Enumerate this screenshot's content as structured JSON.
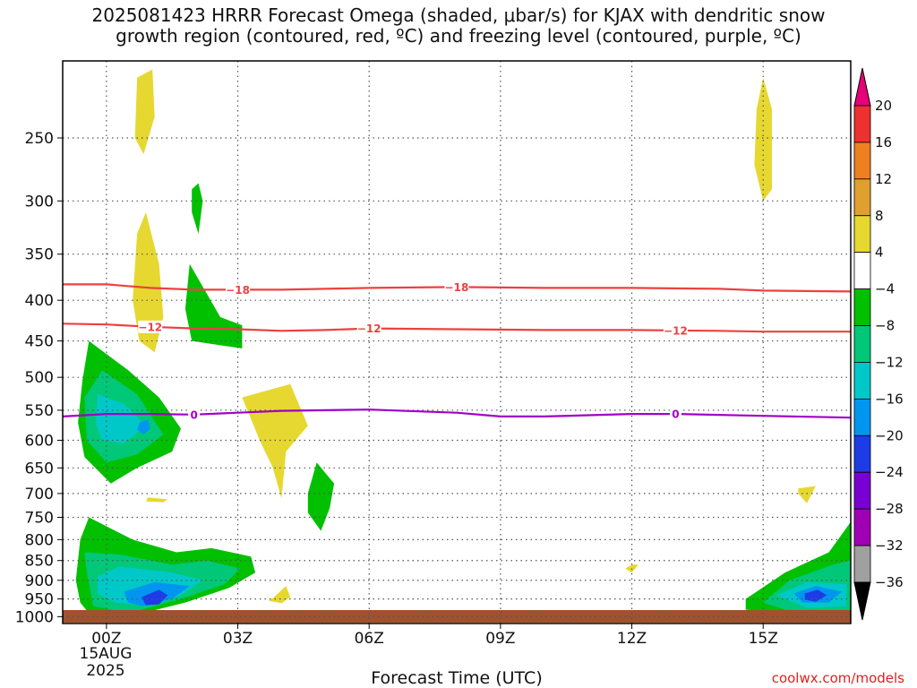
{
  "title_line1": "2025081423 HRRR Forecast Omega (shaded, μbar/s) for KJAX with dendritic snow",
  "title_line2": "growth region (contoured, red, ºC) and freezing level (contoured, purple, ºC)",
  "credit": "coolwx.com/models",
  "chart_data": {
    "type": "contour",
    "xlabel": "Forecast Time (UTC)",
    "x_ticks": [
      {
        "hour": 0,
        "label": "00Z"
      },
      {
        "hour": 3,
        "label": "03Z"
      },
      {
        "hour": 6,
        "label": "06Z"
      },
      {
        "hour": 9,
        "label": "09Z"
      },
      {
        "hour": 12,
        "label": "12Z"
      },
      {
        "hour": 15,
        "label": "15Z"
      }
    ],
    "x_date_label": [
      "15AUG",
      "2025"
    ],
    "xlim": [
      -1,
      17
    ],
    "y_ticks": [
      250,
      300,
      350,
      400,
      450,
      500,
      550,
      600,
      650,
      700,
      750,
      800,
      850,
      900,
      950,
      1000
    ],
    "ylim": [
      1020,
      200
    ],
    "y_scale": "log",
    "colorbar": {
      "labels": [
        "20",
        "16",
        "12",
        "8",
        "4",
        "−4",
        "−8",
        "−12",
        "−16",
        "−20",
        "−24",
        "−28",
        "−32",
        "−36"
      ],
      "colors": [
        "#e8007a",
        "#ee3030",
        "#ee8020",
        "#e0a030",
        "#e6d830",
        "#ffffff",
        "#00c000",
        "#00c878",
        "#00c8c8",
        "#0096f0",
        "#1e3ce6",
        "#7800d2",
        "#a000b4",
        "#a0a0a0",
        "#000000"
      ]
    },
    "dgz_contours": [
      {
        "level": -18,
        "color": "#ee4040",
        "points": [
          [
            -1,
            382
          ],
          [
            0,
            382
          ],
          [
            1,
            386
          ],
          [
            2,
            388
          ],
          [
            3,
            388
          ],
          [
            4,
            388
          ],
          [
            5,
            387
          ],
          [
            6,
            386
          ],
          [
            8,
            385
          ],
          [
            10,
            386
          ],
          [
            12,
            386
          ],
          [
            14,
            387
          ],
          [
            15,
            389
          ],
          [
            17,
            390
          ]
        ],
        "label_hours": [
          3,
          8
        ]
      },
      {
        "level": -12,
        "color": "#ee4040",
        "points": [
          [
            -1,
            428
          ],
          [
            0,
            429
          ],
          [
            1,
            432
          ],
          [
            2,
            434
          ],
          [
            3,
            435
          ],
          [
            4,
            437
          ],
          [
            5,
            436
          ],
          [
            6,
            434
          ],
          [
            8,
            435
          ],
          [
            10,
            436
          ],
          [
            12,
            436
          ],
          [
            14,
            437
          ],
          [
            15,
            438
          ],
          [
            17,
            438
          ]
        ],
        "label_hours": [
          1,
          6,
          13
        ]
      }
    ],
    "freezing_contour": {
      "level": 0,
      "color": "#a000c8",
      "points": [
        [
          -1,
          560
        ],
        [
          0,
          556
        ],
        [
          1,
          556
        ],
        [
          2,
          557
        ],
        [
          3,
          554
        ],
        [
          4,
          551
        ],
        [
          6,
          549
        ],
        [
          8,
          554
        ],
        [
          9,
          560
        ],
        [
          10,
          560
        ],
        [
          11,
          558
        ],
        [
          12,
          556
        ],
        [
          13,
          556
        ],
        [
          15,
          559
        ],
        [
          17,
          562
        ]
      ],
      "label_hours": [
        2,
        13
      ]
    },
    "omega_regions": [
      {
        "level": 4,
        "points": [
          [
            0.7,
            210
          ],
          [
            1.05,
            205
          ],
          [
            1.1,
            235
          ],
          [
            0.85,
            262
          ],
          [
            0.65,
            250
          ]
        ]
      },
      {
        "level": 4,
        "points": [
          [
            0.7,
            330
          ],
          [
            0.9,
            310
          ],
          [
            1.2,
            360
          ],
          [
            1.3,
            420
          ],
          [
            1.1,
            465
          ],
          [
            0.75,
            450
          ],
          [
            0.6,
            400
          ]
        ]
      },
      {
        "level": 4,
        "points": [
          [
            3.1,
            530
          ],
          [
            4.2,
            510
          ],
          [
            4.6,
            575
          ],
          [
            4.1,
            620
          ],
          [
            4.0,
            710
          ],
          [
            3.8,
            650
          ],
          [
            3.5,
            600
          ]
        ]
      },
      {
        "level": 4,
        "points": [
          [
            3.8,
            948
          ],
          [
            4.1,
            915
          ],
          [
            4.2,
            945
          ],
          [
            4.0,
            962
          ],
          [
            3.7,
            955
          ]
        ]
      },
      {
        "level": 4,
        "points": [
          [
            0.95,
            708
          ],
          [
            1.4,
            712
          ],
          [
            1.3,
            718
          ],
          [
            0.9,
            716
          ]
        ]
      },
      {
        "level": 4,
        "points": [
          [
            15.0,
            210
          ],
          [
            15.2,
            230
          ],
          [
            15.2,
            290
          ],
          [
            15.0,
            300
          ],
          [
            14.8,
            270
          ],
          [
            14.85,
            230
          ]
        ]
      },
      {
        "level": 4,
        "points": [
          [
            12.0,
            860
          ],
          [
            12.15,
            860
          ],
          [
            12.0,
            880
          ],
          [
            11.85,
            870
          ]
        ]
      },
      {
        "level": 4,
        "points": [
          [
            15.8,
            690
          ],
          [
            16.2,
            685
          ],
          [
            16.0,
            720
          ],
          [
            15.8,
            700
          ]
        ]
      },
      {
        "level": -4,
        "points": [
          [
            1.95,
            290
          ],
          [
            2.1,
            285
          ],
          [
            2.2,
            300
          ],
          [
            2.1,
            330
          ],
          [
            1.95,
            310
          ]
        ]
      },
      {
        "level": -4,
        "points": [
          [
            1.9,
            360
          ],
          [
            2.6,
            420
          ],
          [
            3.1,
            430
          ],
          [
            3.1,
            460
          ],
          [
            1.95,
            450
          ],
          [
            1.8,
            410
          ]
        ]
      },
      {
        "level": -4,
        "points": [
          [
            -0.55,
            505
          ],
          [
            -0.4,
            450
          ],
          [
            0.5,
            490
          ],
          [
            1.2,
            530
          ],
          [
            1.7,
            580
          ],
          [
            1.5,
            620
          ],
          [
            0.7,
            650
          ],
          [
            0.1,
            680
          ],
          [
            -0.5,
            630
          ],
          [
            -0.65,
            570
          ]
        ]
      },
      {
        "level": -4,
        "points": [
          [
            4.6,
            700
          ],
          [
            4.8,
            640
          ],
          [
            5.2,
            680
          ],
          [
            5.1,
            730
          ],
          [
            4.9,
            780
          ],
          [
            4.6,
            740
          ]
        ]
      },
      {
        "level": -4,
        "points": [
          [
            -0.6,
            960
          ],
          [
            -0.7,
            900
          ],
          [
            -0.6,
            800
          ],
          [
            -0.4,
            750
          ],
          [
            0.6,
            800
          ],
          [
            1.6,
            830
          ],
          [
            2.4,
            820
          ],
          [
            3.3,
            840
          ],
          [
            3.4,
            880
          ],
          [
            2.8,
            920
          ],
          [
            1.8,
            960
          ],
          [
            0.5,
            1000
          ],
          [
            -0.4,
            990
          ]
        ]
      },
      {
        "level": -4,
        "points": [
          [
            14.6,
            980
          ],
          [
            14.6,
            950
          ],
          [
            15.5,
            880
          ],
          [
            16.5,
            830
          ],
          [
            17,
            760
          ],
          [
            17,
            985
          ],
          [
            15.8,
            990
          ]
        ]
      },
      {
        "level": -8,
        "points": [
          [
            -0.45,
            600
          ],
          [
            -0.5,
            530
          ],
          [
            -0.1,
            490
          ],
          [
            0.7,
            525
          ],
          [
            1.3,
            590
          ],
          [
            0.7,
            625
          ],
          [
            0.0,
            640
          ]
        ]
      },
      {
        "level": -8,
        "points": [
          [
            -0.45,
            880
          ],
          [
            -0.5,
            830
          ],
          [
            0.3,
            835
          ],
          [
            1.5,
            860
          ],
          [
            2.3,
            850
          ],
          [
            3.05,
            870
          ],
          [
            2.7,
            910
          ],
          [
            1.7,
            950
          ],
          [
            0.5,
            990
          ],
          [
            -0.3,
            970
          ]
        ]
      },
      {
        "level": -8,
        "points": [
          [
            15.0,
            960
          ],
          [
            15.6,
            900
          ],
          [
            16.6,
            860
          ],
          [
            17,
            850
          ],
          [
            17,
            985
          ],
          [
            15.5,
            980
          ]
        ]
      },
      {
        "level": -12,
        "points": [
          [
            -0.25,
            570
          ],
          [
            -0.2,
            525
          ],
          [
            0.4,
            540
          ],
          [
            0.9,
            575
          ],
          [
            0.4,
            605
          ],
          [
            -0.1,
            600
          ]
        ]
      },
      {
        "level": -12,
        "points": [
          [
            -0.2,
            890
          ],
          [
            0.3,
            865
          ],
          [
            1.5,
            880
          ],
          [
            2.2,
            900
          ],
          [
            1.7,
            940
          ],
          [
            1.0,
            970
          ],
          [
            0.2,
            960
          ],
          [
            -0.2,
            935
          ]
        ]
      },
      {
        "level": -12,
        "points": [
          [
            15.3,
            940
          ],
          [
            16.0,
            905
          ],
          [
            16.9,
            910
          ],
          [
            16.9,
            970
          ],
          [
            16.0,
            975
          ]
        ]
      },
      {
        "level": -16,
        "points": [
          [
            0.75,
            570
          ],
          [
            0.95,
            565
          ],
          [
            1.0,
            580
          ],
          [
            0.85,
            590
          ],
          [
            0.7,
            582
          ]
        ]
      },
      {
        "level": -16,
        "points": [
          [
            0.4,
            930
          ],
          [
            1.1,
            905
          ],
          [
            1.9,
            915
          ],
          [
            1.5,
            950
          ],
          [
            0.8,
            970
          ],
          [
            0.5,
            960
          ]
        ]
      },
      {
        "level": -16,
        "points": [
          [
            15.7,
            935
          ],
          [
            16.2,
            915
          ],
          [
            16.8,
            930
          ],
          [
            16.5,
            960
          ],
          [
            15.9,
            960
          ]
        ]
      },
      {
        "level": -20,
        "points": [
          [
            0.8,
            945
          ],
          [
            1.2,
            925
          ],
          [
            1.4,
            940
          ],
          [
            1.2,
            965
          ],
          [
            0.9,
            968
          ]
        ]
      },
      {
        "level": -20,
        "points": [
          [
            15.95,
            935
          ],
          [
            16.25,
            925
          ],
          [
            16.45,
            940
          ],
          [
            16.2,
            958
          ],
          [
            15.95,
            952
          ]
        ]
      }
    ]
  }
}
